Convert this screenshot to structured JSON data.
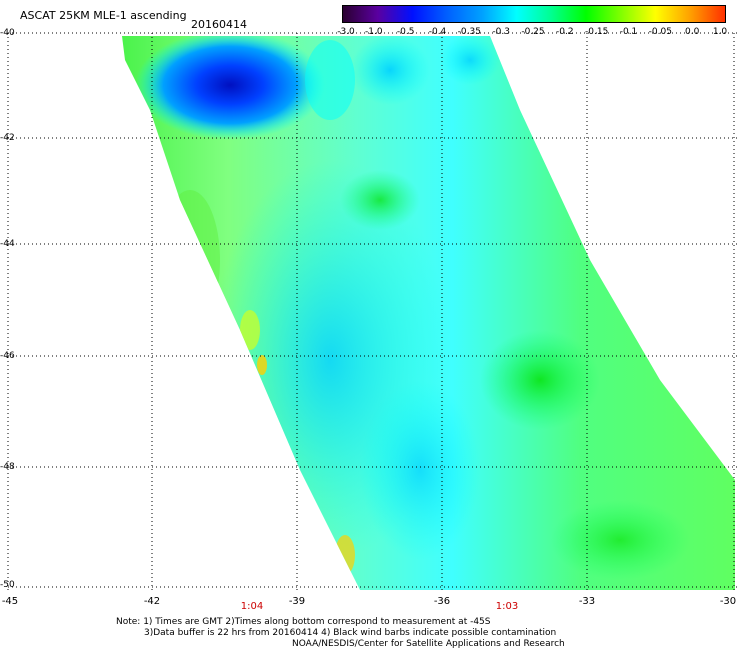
{
  "header": {
    "title": "ASCAT 25KM MLE-1 ascending",
    "date": "20160414"
  },
  "colorbar": {
    "labels": [
      "-3.0",
      "-1.0",
      "-0.5",
      "-0.4",
      "-0.35",
      "-0.3",
      "-0.25",
      "-0.2",
      "-0.15",
      "-0.1",
      "-0.05",
      "0.0",
      "1.0"
    ],
    "colors": [
      "#2a0030",
      "#5a00a0",
      "#0010ff",
      "#0060ff",
      "#00a0ff",
      "#00ffff",
      "#00ff90",
      "#00ff00",
      "#80ff00",
      "#ffff00",
      "#ffa000",
      "#ff3000"
    ]
  },
  "axes": {
    "y_labels": [
      "-40",
      "-42",
      "-44",
      "-46",
      "-48",
      "-50"
    ],
    "x_labels": [
      "-45",
      "-42",
      "-39",
      "-36",
      "-33",
      "-30"
    ]
  },
  "pass_times": [
    "1:04",
    "1:03"
  ],
  "notes": [
    "Note: 1) Times are GMT 2)Times along bottom correspond to measurement at -45S",
    "3)Data buffer is 22 hrs from 20160414 4) Black wind barbs indicate possible contamination",
    "NOAA/NESDIS/Center for Satellite Applications and Research"
  ],
  "map": {
    "swath_field": "MLE values over swath",
    "minimum_region": "deep blue patch near -40.5 lat, -40 lon"
  }
}
